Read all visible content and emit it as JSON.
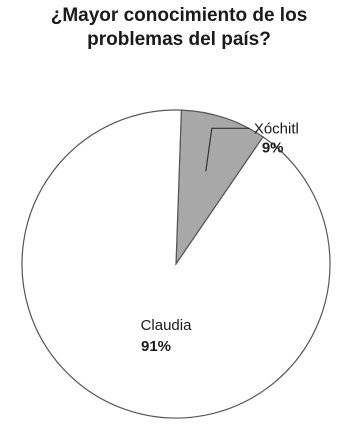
{
  "title": {
    "line1": "¿Mayor conocimiento de los",
    "line2": "problemas del país?"
  },
  "chart_data": {
    "type": "pie",
    "title": "¿Mayor conocimiento de los problemas del país?",
    "slices": [
      {
        "label": "Xóchitl",
        "value": 9,
        "value_label": "9%",
        "color": "#a8a8a8"
      },
      {
        "label": "Claudia",
        "value": 91,
        "value_label": "91%",
        "color": "#ffffff"
      }
    ],
    "legend": "none",
    "outline_color": "#555555"
  }
}
